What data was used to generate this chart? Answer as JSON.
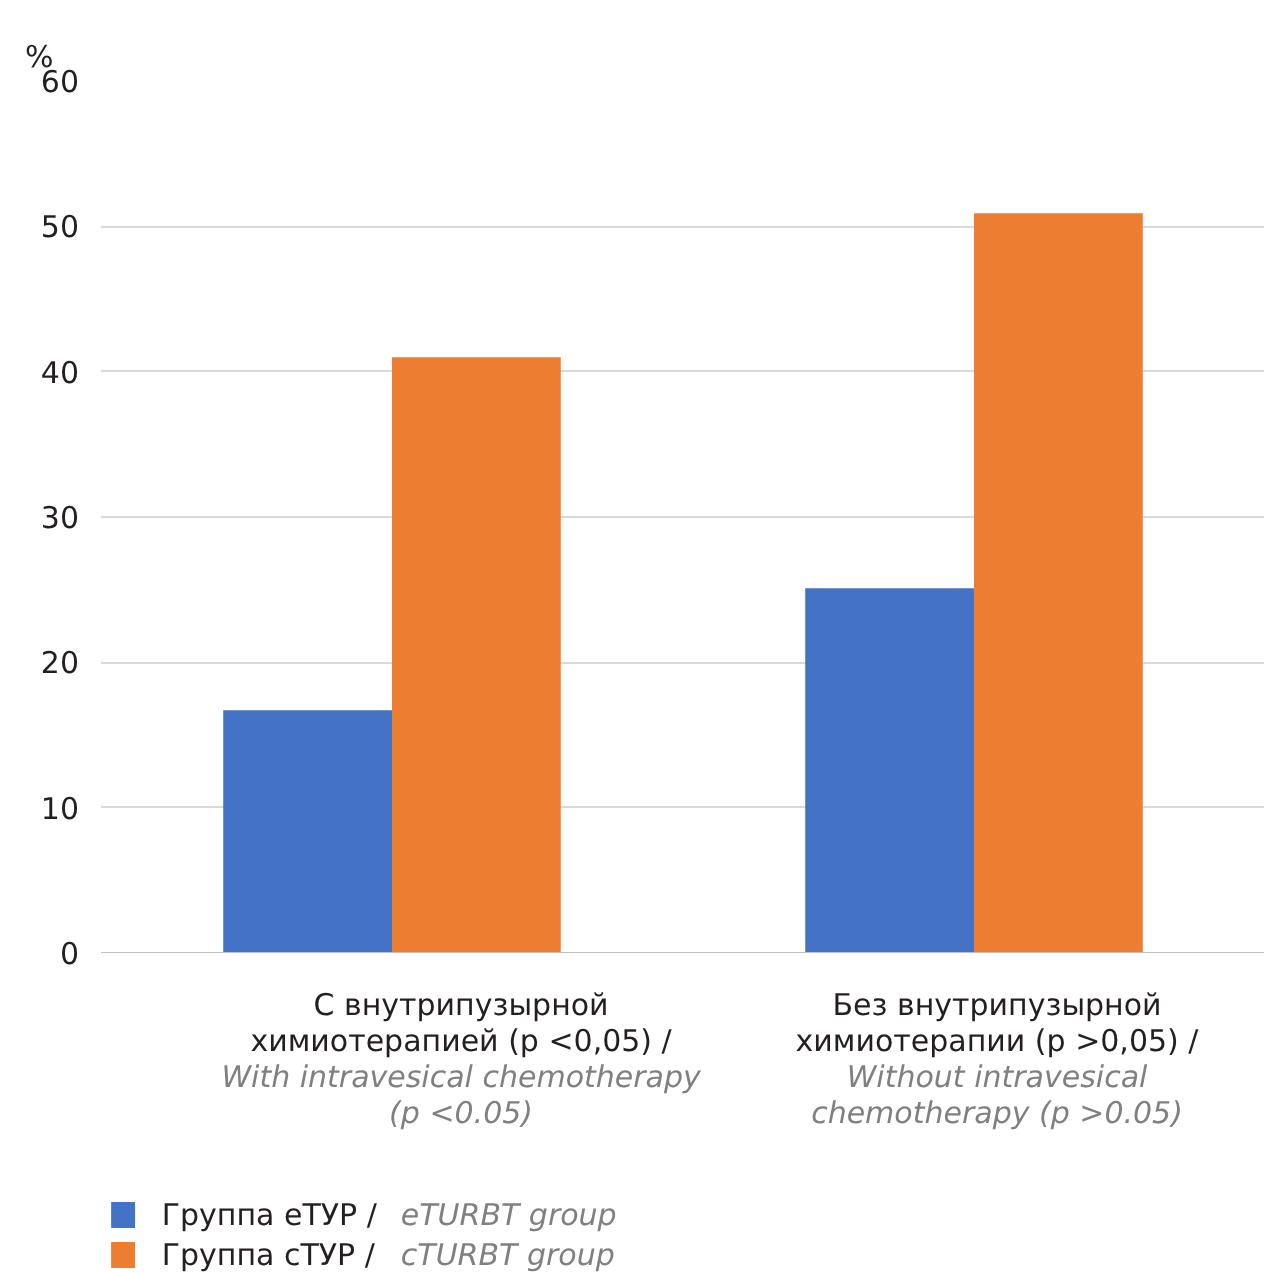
{
  "chart_data": {
    "type": "bar",
    "ylabel": "%",
    "categories": [
      "С внутрипузырной химиотерапией (p <0,05) / With intravesical chemotherapy (p <0.05)",
      "Без внутрипузырной химиотерапии (p >0,05) / Without intravesical chemotherapy (p >0.05)"
    ],
    "series": [
      {
        "name": "Группа еТУР / eTURBT group",
        "color": "#4472c4",
        "values": [
          16.7,
          25.1
        ]
      },
      {
        "name": "Группа сТУР / cTURBT group",
        "color": "#ed7d31",
        "values": [
          41.0,
          50.9
        ]
      }
    ],
    "ylim": [
      0,
      60
    ],
    "yticks": [
      0,
      10,
      20,
      30,
      40,
      50,
      60
    ],
    "grid": "y",
    "legend": "bottom left"
  }
}
